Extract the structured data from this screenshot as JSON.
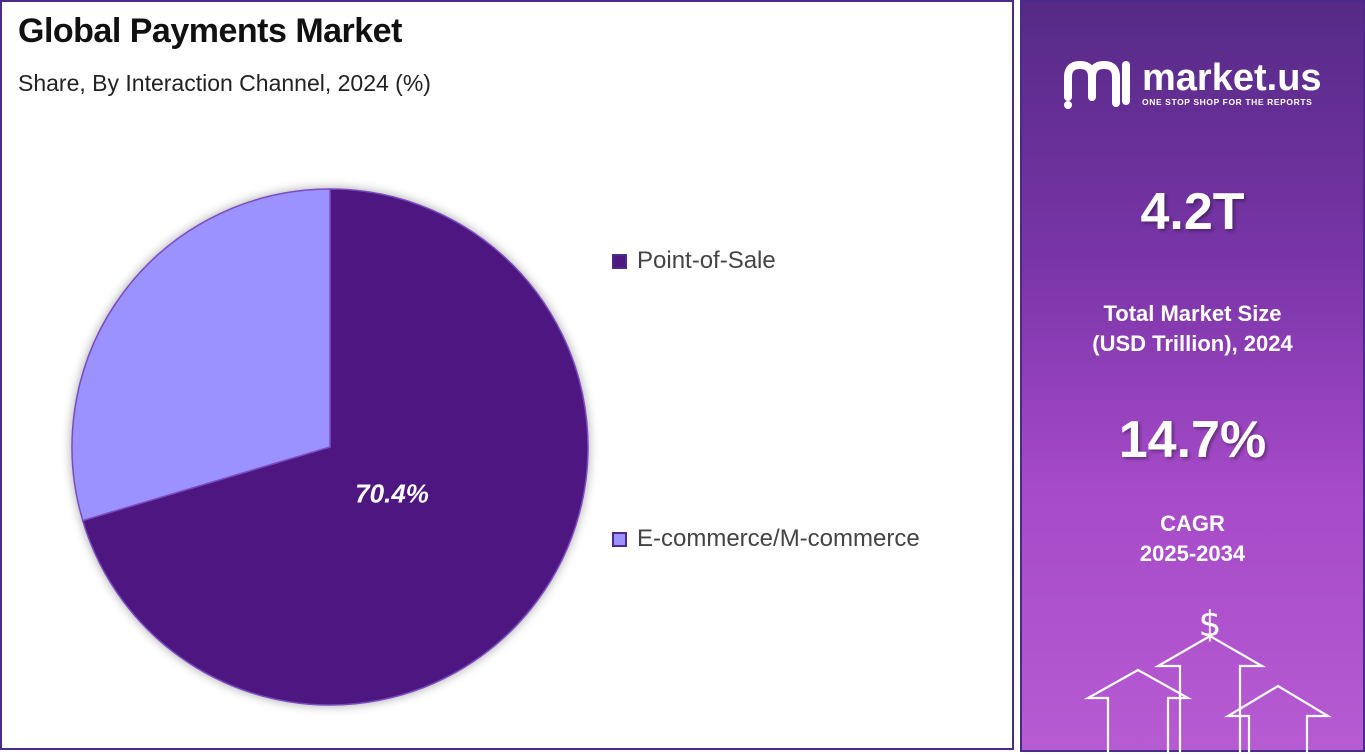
{
  "title": "Global Payments Market",
  "subtitle": "Share, By Interaction Channel, 2024 (%)",
  "chart_data": {
    "type": "pie",
    "title": "Global Payments Market",
    "subtitle": "Share, By Interaction Channel, 2024 (%)",
    "categories": [
      "Point-of-Sale",
      "E-commerce/M-commerce"
    ],
    "values": [
      70.4,
      29.6
    ],
    "data_labels": [
      "70.4%",
      ""
    ],
    "colors": [
      "#4e1880",
      "#9b91ff"
    ],
    "legend_position": "right"
  },
  "legend": [
    {
      "label": "Point-of-Sale",
      "color": "#4e1880"
    },
    {
      "label": "E-commerce/M-commerce",
      "color": "#9b91ff"
    }
  ],
  "sidebar": {
    "logo_text": "market.us",
    "logo_tagline": "ONE STOP SHOP FOR THE REPORTS",
    "market_size_value": "4.2T",
    "market_size_label_line1": "Total Market Size",
    "market_size_label_line2": "(USD Trillion), 2024",
    "cagr_value": "14.7%",
    "cagr_label_line1": "CAGR",
    "cagr_label_line2": "2025-2034",
    "dollar_icon": "dollar-icon",
    "arrows_icon": "growth-arrows-icon"
  }
}
